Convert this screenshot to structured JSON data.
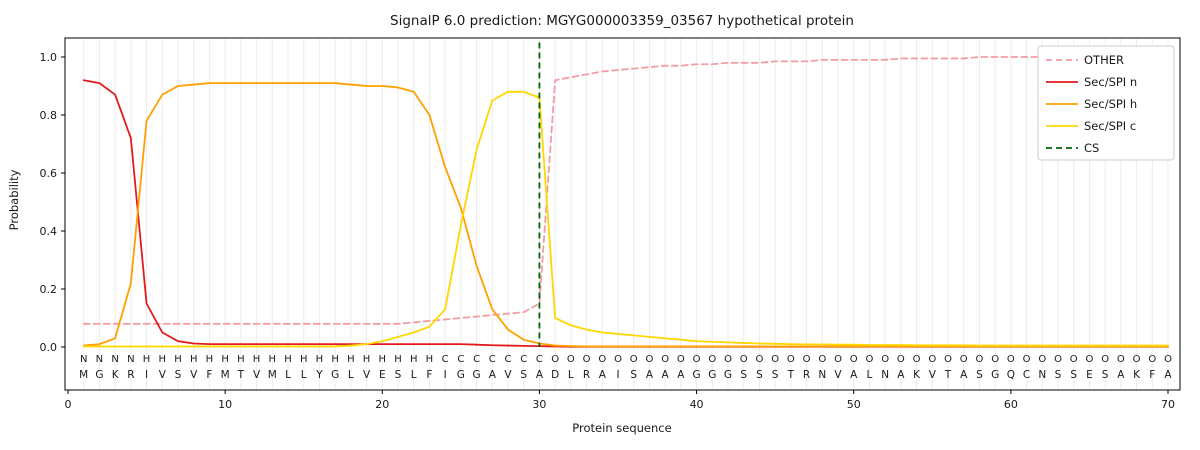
{
  "title": "SignalP 6.0 prediction: MGYG000003359_03567 hypothetical protein",
  "axes": {
    "xlabel": "Protein sequence",
    "ylabel": "Probability",
    "yticks": [
      0.0,
      0.2,
      0.4,
      0.6,
      0.8,
      1.0
    ],
    "ytick_labels": [
      "0.0",
      "0.2",
      "0.4",
      "0.6",
      "0.8",
      "1.0"
    ],
    "xticks": [
      0,
      10,
      20,
      30,
      40,
      50,
      60,
      70
    ]
  },
  "legend": {
    "entries": [
      {
        "label": "OTHER",
        "color": "#f29ca5",
        "dash": true
      },
      {
        "label": "Sec/SPI n",
        "color": "#e41a1c",
        "dash": false
      },
      {
        "label": "Sec/SPI h",
        "color": "#ffa000",
        "dash": false
      },
      {
        "label": "Sec/SPI c",
        "color": "#ffd700",
        "dash": false
      },
      {
        "label": "CS",
        "color": "#006400",
        "dash": true
      }
    ]
  },
  "sequence": "MGKRIVSVFMTVMLLYGLVESLFIGGAVSADLRAISAAAGGGSSSTRNVALNAKVTASGQCNSSESAKFA",
  "region_labels": "NNNNHHHHHHHHHHHHHHHHHHHCCCCCCCOOOOOOOOOOOOOOOOOOOOOOOOOOOOOOOOOOOOOOOO",
  "region_colors": {
    "N": "#e41a1c",
    "H": "#ffa000",
    "C": "#ffd700",
    "O": "#808080"
  },
  "grid_color": "#ececec",
  "chart_data": {
    "type": "line",
    "title": "SignalP 6.0 prediction: MGYG000003359_03567 hypothetical protein",
    "xlabel": "Protein sequence",
    "ylabel": "Probability",
    "xlim": [
      0,
      70.8
    ],
    "ylim": [
      -0.15,
      1.07
    ],
    "grid": "vertical-per-residue",
    "legend_position": "upper right",
    "x_positions": "1..70",
    "series": [
      {
        "name": "OTHER",
        "color": "#f29ca5",
        "style": "dashed",
        "values": [
          0.08,
          0.08,
          0.08,
          0.08,
          0.08,
          0.08,
          0.08,
          0.08,
          0.08,
          0.08,
          0.08,
          0.08,
          0.08,
          0.08,
          0.08,
          0.08,
          0.08,
          0.08,
          0.08,
          0.08,
          0.08,
          0.085,
          0.09,
          0.095,
          0.1,
          0.105,
          0.11,
          0.115,
          0.12,
          0.15,
          0.92,
          0.93,
          0.94,
          0.95,
          0.955,
          0.96,
          0.965,
          0.97,
          0.97,
          0.975,
          0.975,
          0.98,
          0.98,
          0.98,
          0.985,
          0.985,
          0.985,
          0.99,
          0.99,
          0.99,
          0.99,
          0.99,
          0.995,
          0.995,
          0.995,
          0.995,
          0.995,
          1.0,
          1.0,
          1.0,
          1.0,
          1.0,
          1.0,
          1.0,
          1.0,
          1.0,
          1.0,
          1.0,
          1.0,
          1.0
        ]
      },
      {
        "name": "Sec/SPI n",
        "color": "#e41a1c",
        "style": "solid",
        "values": [
          0.92,
          0.91,
          0.87,
          0.72,
          0.15,
          0.05,
          0.02,
          0.012,
          0.01,
          0.01,
          0.01,
          0.01,
          0.01,
          0.01,
          0.01,
          0.01,
          0.01,
          0.01,
          0.01,
          0.01,
          0.01,
          0.01,
          0.01,
          0.01,
          0.01,
          0.008,
          0.006,
          0.005,
          0.004,
          0.003,
          0.002,
          0.001,
          0.001,
          0.001,
          0.001,
          0.001,
          0.001,
          0.001,
          0.001,
          0.001,
          0.001,
          0.001,
          0.001,
          0.001,
          0.001,
          0.001,
          0.001,
          0.001,
          0.001,
          0.001,
          0.001,
          0.001,
          0.001,
          0.001,
          0.001,
          0.001,
          0.001,
          0.001,
          0.001,
          0.001,
          0.001,
          0.001,
          0.001,
          0.001,
          0.001,
          0.001,
          0.001,
          0.001,
          0.001,
          0.001
        ]
      },
      {
        "name": "Sec/SPI h",
        "color": "#ffa000",
        "style": "solid",
        "values": [
          0.005,
          0.01,
          0.03,
          0.22,
          0.78,
          0.87,
          0.9,
          0.905,
          0.91,
          0.91,
          0.91,
          0.91,
          0.91,
          0.91,
          0.91,
          0.91,
          0.91,
          0.905,
          0.9,
          0.9,
          0.895,
          0.88,
          0.8,
          0.62,
          0.48,
          0.28,
          0.13,
          0.06,
          0.025,
          0.012,
          0.005,
          0.003,
          0.002,
          0.002,
          0.002,
          0.002,
          0.002,
          0.002,
          0.002,
          0.002,
          0.002,
          0.002,
          0.002,
          0.002,
          0.002,
          0.002,
          0.002,
          0.002,
          0.002,
          0.002,
          0.002,
          0.002,
          0.002,
          0.002,
          0.002,
          0.002,
          0.002,
          0.002,
          0.002,
          0.002,
          0.002,
          0.002,
          0.002,
          0.002,
          0.002,
          0.002,
          0.002,
          0.002,
          0.002,
          0.002
        ]
      },
      {
        "name": "Sec/SPI c",
        "color": "#ffd700",
        "style": "solid",
        "values": [
          0.002,
          0.002,
          0.002,
          0.002,
          0.002,
          0.002,
          0.002,
          0.002,
          0.002,
          0.002,
          0.002,
          0.002,
          0.002,
          0.002,
          0.002,
          0.002,
          0.002,
          0.005,
          0.01,
          0.02,
          0.035,
          0.05,
          0.07,
          0.13,
          0.42,
          0.68,
          0.85,
          0.88,
          0.88,
          0.86,
          0.1,
          0.075,
          0.06,
          0.05,
          0.045,
          0.04,
          0.035,
          0.03,
          0.025,
          0.02,
          0.018,
          0.016,
          0.014,
          0.012,
          0.011,
          0.01,
          0.009,
          0.009,
          0.008,
          0.008,
          0.007,
          0.007,
          0.007,
          0.006,
          0.006,
          0.006,
          0.006,
          0.005,
          0.005,
          0.005,
          0.005,
          0.005,
          0.005,
          0.005,
          0.005,
          0.005,
          0.005,
          0.005,
          0.005,
          0.005
        ]
      }
    ],
    "cs_line": {
      "name": "CS",
      "x": 30,
      "color": "#006400",
      "style": "dashed"
    }
  }
}
